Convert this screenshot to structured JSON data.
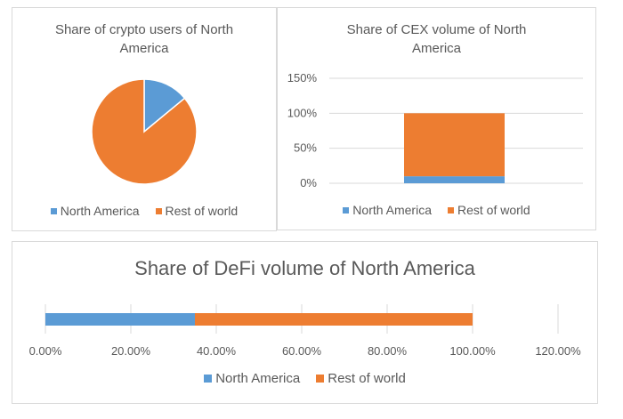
{
  "colors": {
    "north_america": "#5B9BD5",
    "rest_of_world": "#ED7D31",
    "grid": "#d9d9d9",
    "text": "#595959"
  },
  "chart_data": [
    {
      "type": "pie",
      "title": "Share of crypto users of North America",
      "categories": [
        "North America",
        "Rest of world"
      ],
      "values": [
        14,
        86
      ],
      "legend": "bottom"
    },
    {
      "type": "bar",
      "title": "Share of CEX volume of North America",
      "stacked": true,
      "categories": [
        ""
      ],
      "series": [
        {
          "name": "North America",
          "values": [
            10
          ]
        },
        {
          "name": "Rest of world",
          "values": [
            90
          ]
        }
      ],
      "ylim": [
        0,
        150
      ],
      "yticks": [
        "0%",
        "50%",
        "100%",
        "150%"
      ],
      "grid": true,
      "legend": "bottom"
    },
    {
      "type": "bar",
      "orientation": "horizontal",
      "title": "Share of DeFi volume of North America",
      "stacked": true,
      "categories": [
        ""
      ],
      "series": [
        {
          "name": "North America",
          "values": [
            35
          ]
        },
        {
          "name": "Rest of world",
          "values": [
            65
          ]
        }
      ],
      "xlim": [
        0,
        120
      ],
      "xticks": [
        "0.00%",
        "20.00%",
        "40.00%",
        "60.00%",
        "80.00%",
        "100.00%",
        "120.00%"
      ],
      "grid": true,
      "legend": "bottom"
    }
  ]
}
